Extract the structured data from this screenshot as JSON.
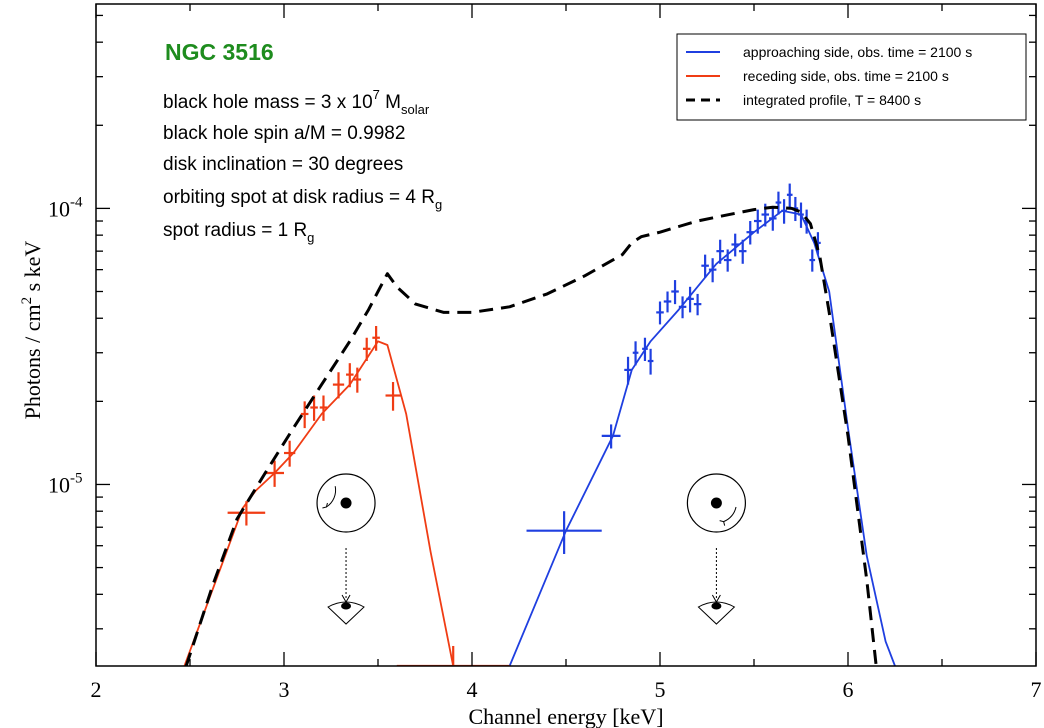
{
  "chart_data": {
    "type": "line",
    "title": "NGC 3516",
    "xlabel": "Channel energy [keV]",
    "ylabel": {
      "pre": "Photons / cm",
      "sup": "2",
      "post": " s keV"
    },
    "xlim": [
      2,
      7
    ],
    "ylim": [
      2.2e-06,
      0.00055
    ],
    "yscale": "log",
    "x_ticks": [
      "2",
      "3",
      "4",
      "5",
      "6",
      "7"
    ],
    "y_tick_labels": [
      {
        "value": 0.0001,
        "base": "10",
        "exp": "-4"
      },
      {
        "value": 1e-05,
        "base": "10",
        "exp": "-5"
      }
    ],
    "legend_position": "top-right",
    "annotation": {
      "title": "NGC 3516",
      "mass": {
        "pre": "black hole mass = 3 x 10",
        "sup": "7",
        "mid": " M",
        "sub": "solar"
      },
      "spin": "black hole spin a/M = 0.9982",
      "inclination": "disk inclination = 30 degrees",
      "spot_radius_disk": {
        "pre": "orbiting spot at disk radius = 4 R",
        "sub": "g"
      },
      "spot_radius": {
        "pre": "spot radius = 1 R",
        "sub": "g"
      }
    },
    "series": [
      {
        "name": "approaching side, obs. time = 2100 s",
        "color": "#1f3fe0",
        "style": "solid",
        "model_x": [
          4.2,
          4.5,
          4.75,
          4.85,
          4.95,
          5.1,
          5.3,
          5.5,
          5.65,
          5.75,
          5.82,
          5.9,
          6.0,
          6.1,
          6.2,
          6.25
        ],
        "model_y": [
          2.2e-06,
          6.8e-06,
          1.5e-05,
          2.6e-05,
          3.3e-05,
          4.3e-05,
          6.3e-05,
          8.2e-05,
          9.8e-05,
          9.5e-05,
          7.5e-05,
          5e-05,
          1.6e-05,
          5.5e-06,
          2.7e-06,
          2.2e-06
        ],
        "points": [
          {
            "x": 4.49,
            "y": 6.8e-06,
            "xerr": 0.2,
            "yerr": 1.2e-06
          },
          {
            "x": 4.74,
            "y": 1.5e-05,
            "xerr": 0.05,
            "yerr": 1.5e-06
          },
          {
            "x": 4.83,
            "y": 2.6e-05,
            "xerr": 0.02,
            "yerr": 3e-06
          },
          {
            "x": 4.87,
            "y": 3e-05,
            "xerr": 0.015,
            "yerr": 3e-06
          },
          {
            "x": 4.92,
            "y": 3.1e-05,
            "xerr": 0.015,
            "yerr": 3e-06
          },
          {
            "x": 4.95,
            "y": 2.8e-05,
            "xerr": 0.015,
            "yerr": 3e-06
          },
          {
            "x": 5.0,
            "y": 4.2e-05,
            "xerr": 0.02,
            "yerr": 4e-06
          },
          {
            "x": 5.04,
            "y": 4.6e-05,
            "xerr": 0.02,
            "yerr": 4e-06
          },
          {
            "x": 5.08,
            "y": 5e-05,
            "xerr": 0.02,
            "yerr": 5e-06
          },
          {
            "x": 5.12,
            "y": 4.4e-05,
            "xerr": 0.02,
            "yerr": 4e-06
          },
          {
            "x": 5.16,
            "y": 4.7e-05,
            "xerr": 0.02,
            "yerr": 5e-06
          },
          {
            "x": 5.2,
            "y": 4.5e-05,
            "xerr": 0.02,
            "yerr": 4e-06
          },
          {
            "x": 5.24,
            "y": 6.2e-05,
            "xerr": 0.02,
            "yerr": 6e-06
          },
          {
            "x": 5.28,
            "y": 6e-05,
            "xerr": 0.02,
            "yerr": 6e-06
          },
          {
            "x": 5.32,
            "y": 7e-05,
            "xerr": 0.02,
            "yerr": 7e-06
          },
          {
            "x": 5.36,
            "y": 6.5e-05,
            "xerr": 0.02,
            "yerr": 6e-06
          },
          {
            "x": 5.4,
            "y": 7.4e-05,
            "xerr": 0.02,
            "yerr": 7e-06
          },
          {
            "x": 5.44,
            "y": 7e-05,
            "xerr": 0.02,
            "yerr": 7e-06
          },
          {
            "x": 5.48,
            "y": 8.2e-05,
            "xerr": 0.02,
            "yerr": 8e-06
          },
          {
            "x": 5.52,
            "y": 9e-05,
            "xerr": 0.02,
            "yerr": 9e-06
          },
          {
            "x": 5.56,
            "y": 9.5e-05,
            "xerr": 0.02,
            "yerr": 9e-06
          },
          {
            "x": 5.6,
            "y": 9.2e-05,
            "xerr": 0.02,
            "yerr": 9e-06
          },
          {
            "x": 5.63,
            "y": 0.000105,
            "xerr": 0.015,
            "yerr": 1e-05
          },
          {
            "x": 5.66,
            "y": 9.8e-05,
            "xerr": 0.015,
            "yerr": 1e-05
          },
          {
            "x": 5.69,
            "y": 0.000112,
            "xerr": 0.015,
            "yerr": 1.1e-05
          },
          {
            "x": 5.72,
            "y": 0.0001,
            "xerr": 0.015,
            "yerr": 1e-05
          },
          {
            "x": 5.75,
            "y": 9.5e-05,
            "xerr": 0.015,
            "yerr": 1e-05
          },
          {
            "x": 5.78,
            "y": 9e-05,
            "xerr": 0.015,
            "yerr": 9e-06
          },
          {
            "x": 5.81,
            "y": 6.5e-05,
            "xerr": 0.015,
            "yerr": 6e-06
          },
          {
            "x": 5.84,
            "y": 7.5e-05,
            "xerr": 0.015,
            "yerr": 7e-06
          }
        ]
      },
      {
        "name": "receding side, obs. time = 2100 s",
        "color": "#f03c14",
        "style": "solid",
        "model_x": [
          2.47,
          2.78,
          2.85,
          2.95,
          3.05,
          3.2,
          3.35,
          3.5,
          3.55,
          3.65,
          3.78,
          3.9
        ],
        "model_y": [
          2.2e-06,
          8.2e-06,
          9.5e-06,
          1.1e-05,
          1.3e-05,
          1.8e-05,
          2.3e-05,
          3.3e-05,
          3.2e-05,
          1.8e-05,
          5.7e-06,
          2.2e-06
        ],
        "points": [
          {
            "x": 2.8,
            "y": 7.9e-06,
            "xerr": 0.1,
            "yerr": 8e-07
          },
          {
            "x": 2.95,
            "y": 1.1e-05,
            "xerr": 0.05,
            "yerr": 1.2e-06
          },
          {
            "x": 3.03,
            "y": 1.3e-05,
            "xerr": 0.03,
            "yerr": 1.4e-06
          },
          {
            "x": 3.11,
            "y": 1.8e-05,
            "xerr": 0.02,
            "yerr": 2e-06
          },
          {
            "x": 3.16,
            "y": 1.9e-05,
            "xerr": 0.02,
            "yerr": 2e-06
          },
          {
            "x": 3.21,
            "y": 1.9e-05,
            "xerr": 0.02,
            "yerr": 2e-06
          },
          {
            "x": 3.29,
            "y": 2.3e-05,
            "xerr": 0.03,
            "yerr": 2.5e-06
          },
          {
            "x": 3.35,
            "y": 2.5e-05,
            "xerr": 0.02,
            "yerr": 2.5e-06
          },
          {
            "x": 3.39,
            "y": 2.4e-05,
            "xerr": 0.02,
            "yerr": 2.5e-06
          },
          {
            "x": 3.44,
            "y": 3.1e-05,
            "xerr": 0.02,
            "yerr": 3e-06
          },
          {
            "x": 3.49,
            "y": 3.4e-05,
            "xerr": 0.02,
            "yerr": 3.5e-06
          },
          {
            "x": 3.58,
            "y": 2.1e-05,
            "xerr": 0.04,
            "yerr": 2.5e-06
          },
          {
            "x": 3.9,
            "y": 2.2e-06,
            "xerr": 0.3,
            "yerr": 4e-07
          }
        ]
      },
      {
        "name": "integrated profile, T = 8400 s",
        "color": "#000000",
        "style": "dashed",
        "model_x": [
          2.48,
          2.62,
          2.75,
          2.9,
          3.05,
          3.2,
          3.35,
          3.45,
          3.5,
          3.55,
          3.6,
          3.7,
          3.85,
          4.0,
          4.2,
          4.4,
          4.6,
          4.8,
          4.85,
          4.9,
          5.0,
          5.1,
          5.2,
          5.3,
          5.4,
          5.5,
          5.6,
          5.7,
          5.75,
          5.8,
          5.85,
          5.9,
          6.0,
          6.1,
          6.15
        ],
        "model_y": [
          2.2e-06,
          4.3e-06,
          7.5e-06,
          1.1e-05,
          1.6e-05,
          2.3e-05,
          3.3e-05,
          4.3e-05,
          5e-05,
          5.8e-05,
          5.2e-05,
          4.5e-05,
          4.2e-05,
          4.2e-05,
          4.4e-05,
          4.9e-05,
          5.7e-05,
          6.8e-05,
          7.5e-05,
          7.9e-05,
          8.2e-05,
          8.6e-05,
          9e-05,
          9.3e-05,
          9.6e-05,
          9.9e-05,
          0.000101,
          0.0001,
          9.7e-05,
          8.8e-05,
          6.7e-05,
          4.2e-05,
          1.5e-05,
          4.5e-06,
          2.2e-06
        ]
      }
    ],
    "geometry_insets": [
      {
        "center_x": 3.33,
        "rotation": "counter-clockwise"
      },
      {
        "center_x": 5.3,
        "rotation": "clockwise"
      }
    ]
  }
}
